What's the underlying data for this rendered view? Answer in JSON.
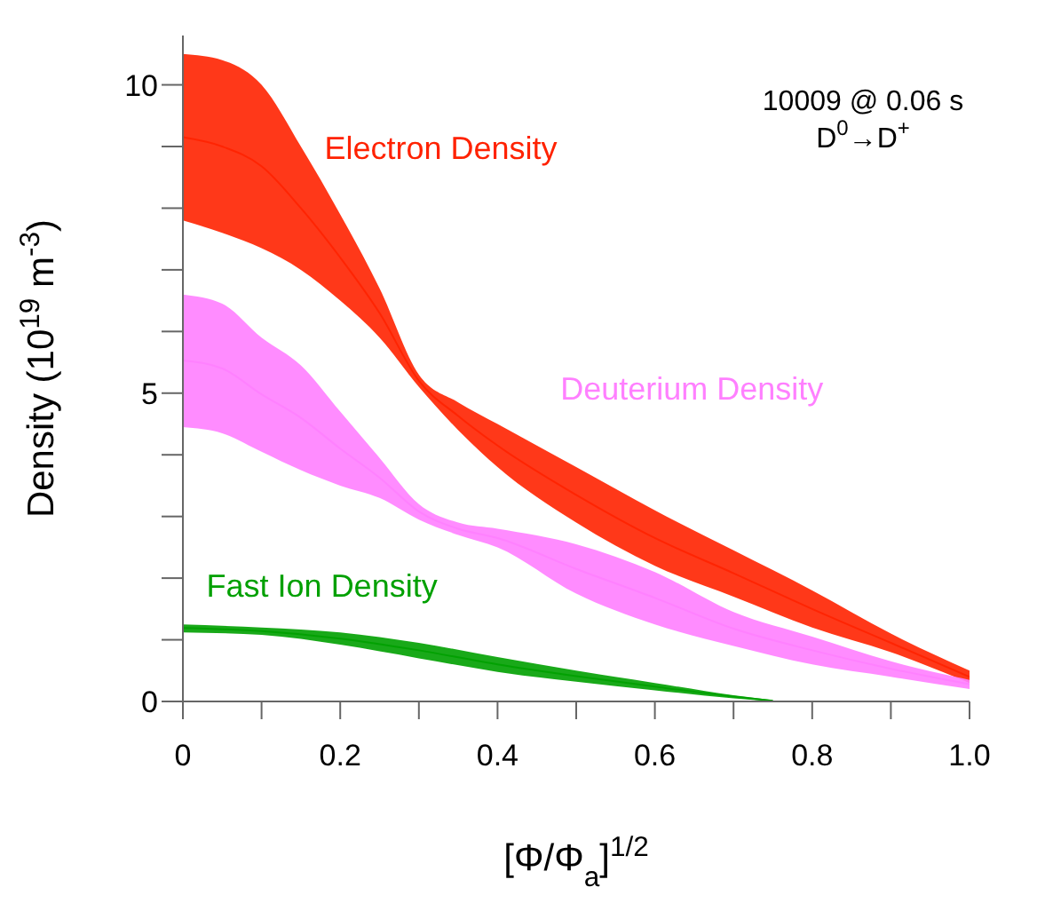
{
  "chart_data": {
    "type": "line",
    "xlabel": "[Φ/Φ$_{a}$]$^{1/2}$",
    "ylabel": "Density (10$^{19}$ m$^{-3}$)",
    "annotations": [
      "10009 @ 0.06 s",
      "D$^{0}$→D$^{+}$"
    ],
    "xlim": [
      0,
      1
    ],
    "ylim": [
      0,
      10.8
    ],
    "xticks": [
      0,
      {
        "value": 0.1,
        "label": null
      },
      0.2,
      {
        "value": 0.3,
        "label": null
      },
      0.4,
      {
        "value": 0.5,
        "label": null
      },
      0.6,
      {
        "value": 0.7,
        "label": null
      },
      0.8,
      {
        "value": 0.9,
        "label": null
      },
      {
        "value": 1,
        "label": "1.0"
      }
    ],
    "yticks": [
      0,
      {
        "value": 1,
        "label": null
      },
      {
        "value": 2,
        "label": null
      },
      {
        "value": 3,
        "label": null
      },
      {
        "value": 4,
        "label": null
      },
      5,
      {
        "value": 6,
        "label": null
      },
      {
        "value": 7,
        "label": null
      },
      {
        "value": 8,
        "label": null
      },
      {
        "value": 9,
        "label": null
      },
      10
    ],
    "grid": false,
    "legend": false,
    "series": [
      {
        "name": "Electron Density",
        "color": "#ff2200",
        "x": [
          0,
          0.05,
          0.1,
          0.15,
          0.2,
          0.25,
          0.3,
          0.35,
          0.4,
          0.5,
          0.6,
          0.7,
          0.8,
          0.9,
          1.0
        ],
        "values": [
          9.15,
          9.0,
          8.68,
          8.0,
          7.2,
          6.3,
          5.2,
          4.63,
          4.15,
          3.35,
          2.65,
          2.08,
          1.5,
          0.95,
          0.4
        ],
        "lower": [
          7.8,
          7.6,
          7.35,
          7.0,
          6.5,
          5.9,
          5.1,
          4.4,
          3.8,
          2.9,
          2.2,
          1.7,
          1.2,
          0.8,
          0.3
        ],
        "upper": [
          10.5,
          10.4,
          10.0,
          9.0,
          7.9,
          6.7,
          5.3,
          4.85,
          4.5,
          3.8,
          3.1,
          2.45,
          1.8,
          1.1,
          0.5
        ]
      },
      {
        "name": "Deuterium Density",
        "color": "#ff80ff",
        "x": [
          0,
          0.05,
          0.1,
          0.15,
          0.2,
          0.25,
          0.3,
          0.35,
          0.4,
          0.5,
          0.6,
          0.7,
          0.8,
          0.9,
          1.0
        ],
        "values": [
          5.53,
          5.4,
          4.98,
          4.6,
          4.1,
          3.63,
          3.08,
          2.8,
          2.65,
          2.15,
          1.68,
          1.18,
          0.83,
          0.53,
          0.28
        ],
        "lower": [
          4.45,
          4.35,
          4.05,
          3.75,
          3.5,
          3.3,
          2.95,
          2.7,
          2.5,
          1.75,
          1.25,
          0.9,
          0.6,
          0.4,
          0.2
        ],
        "upper": [
          6.6,
          6.45,
          5.9,
          5.45,
          4.7,
          3.95,
          3.2,
          2.9,
          2.8,
          2.55,
          2.1,
          1.45,
          1.05,
          0.65,
          0.35
        ]
      },
      {
        "name": "Fast Ion Density",
        "color": "#00a000",
        "x": [
          0,
          0.1,
          0.2,
          0.3,
          0.4,
          0.5,
          0.6,
          0.7,
          0.75
        ],
        "values": [
          1.19,
          1.14,
          1.02,
          0.83,
          0.6,
          0.41,
          0.24,
          0.08,
          0.01
        ],
        "lower": [
          1.12,
          1.08,
          0.92,
          0.7,
          0.48,
          0.32,
          0.18,
          0.05,
          0.0
        ],
        "upper": [
          1.25,
          1.2,
          1.12,
          0.95,
          0.72,
          0.5,
          0.3,
          0.1,
          0.02
        ]
      }
    ]
  }
}
